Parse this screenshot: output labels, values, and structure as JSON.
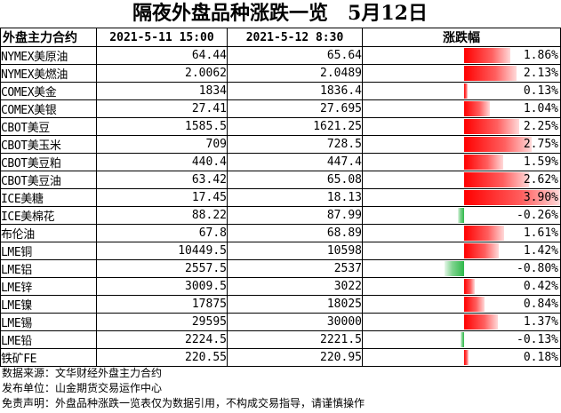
{
  "title": "隔夜外盘品种涨跌一览　5月12日",
  "header": {
    "col_name": "外盘主力合约",
    "col_prev": "2021-5-11 15:00",
    "col_curr": "2021-5-12 8:30",
    "col_change": "涨跌幅"
  },
  "rows": [
    {
      "name": "NYMEX美原油",
      "prev": "64.44",
      "curr": "65.64",
      "change": "1.86%"
    },
    {
      "name": "NYMEX美燃油",
      "prev": "2.0062",
      "curr": "2.0489",
      "change": "2.13%"
    },
    {
      "name": "COMEX美金",
      "prev": "1834",
      "curr": "1836.4",
      "change": "0.13%"
    },
    {
      "name": "COMEX美银",
      "prev": "27.41",
      "curr": "27.695",
      "change": "1.04%"
    },
    {
      "name": "CBOT美豆",
      "prev": "1585.5",
      "curr": "1621.25",
      "change": "2.25%"
    },
    {
      "name": "CBOT美玉米",
      "prev": "709",
      "curr": "728.5",
      "change": "2.75%"
    },
    {
      "name": "CBOT美豆粕",
      "prev": "440.4",
      "curr": "447.4",
      "change": "1.59%"
    },
    {
      "name": "CBOT美豆油",
      "prev": "63.42",
      "curr": "65.08",
      "change": "2.62%"
    },
    {
      "name": "ICE美糖",
      "prev": "17.45",
      "curr": "18.13",
      "change": "3.90%"
    },
    {
      "name": "ICE美棉花",
      "prev": "88.22",
      "curr": "87.99",
      "change": "-0.26%"
    },
    {
      "name": "布伦油",
      "prev": "67.8",
      "curr": "68.89",
      "change": "1.61%"
    },
    {
      "name": "LME铜",
      "prev": "10449.5",
      "curr": "10598",
      "change": "1.42%"
    },
    {
      "name": "LME铝",
      "prev": "2557.5",
      "curr": "2537",
      "change": "-0.80%"
    },
    {
      "name": "LME锌",
      "prev": "3009.5",
      "curr": "3022",
      "change": "0.42%"
    },
    {
      "name": "LME镍",
      "prev": "17875",
      "curr": "18025",
      "change": "0.84%"
    },
    {
      "name": "LME锡",
      "prev": "29595",
      "curr": "30000",
      "change": "1.37%"
    },
    {
      "name": "LME铅",
      "prev": "2224.5",
      "curr": "2221.5",
      "change": "-0.13%"
    },
    {
      "name": "铁矿FE",
      "prev": "220.55",
      "curr": "220.95",
      "change": "0.18%"
    }
  ],
  "chart_data": {
    "type": "bar",
    "title": "隔夜外盘品种涨跌一览　5月12日",
    "categories": [
      "NYMEX美原油",
      "NYMEX美燃油",
      "COMEX美金",
      "COMEX美银",
      "CBOT美豆",
      "CBOT美玉米",
      "CBOT美豆粕",
      "CBOT美豆油",
      "ICE美糖",
      "ICE美棉花",
      "布伦油",
      "LME铜",
      "LME铝",
      "LME锌",
      "LME镍",
      "LME锡",
      "LME铅",
      "铁矿FE"
    ],
    "series": [
      {
        "name": "涨跌幅",
        "values": [
          1.86,
          2.13,
          0.13,
          1.04,
          2.25,
          2.75,
          1.59,
          2.62,
          3.9,
          -0.26,
          1.61,
          1.42,
          -0.8,
          0.42,
          0.84,
          1.37,
          -0.13,
          0.18
        ]
      }
    ],
    "colors": {
      "positive": "#ff0000",
      "negative": "#2eb84a"
    }
  },
  "notes": [
    "数据来源：文华财经外盘主力合约",
    "发布单位：山金期货交易运作中心",
    "免责声明：外盘品种涨跌一览表仅为数据引用，不构成交易指导，请谨慎操作"
  ]
}
